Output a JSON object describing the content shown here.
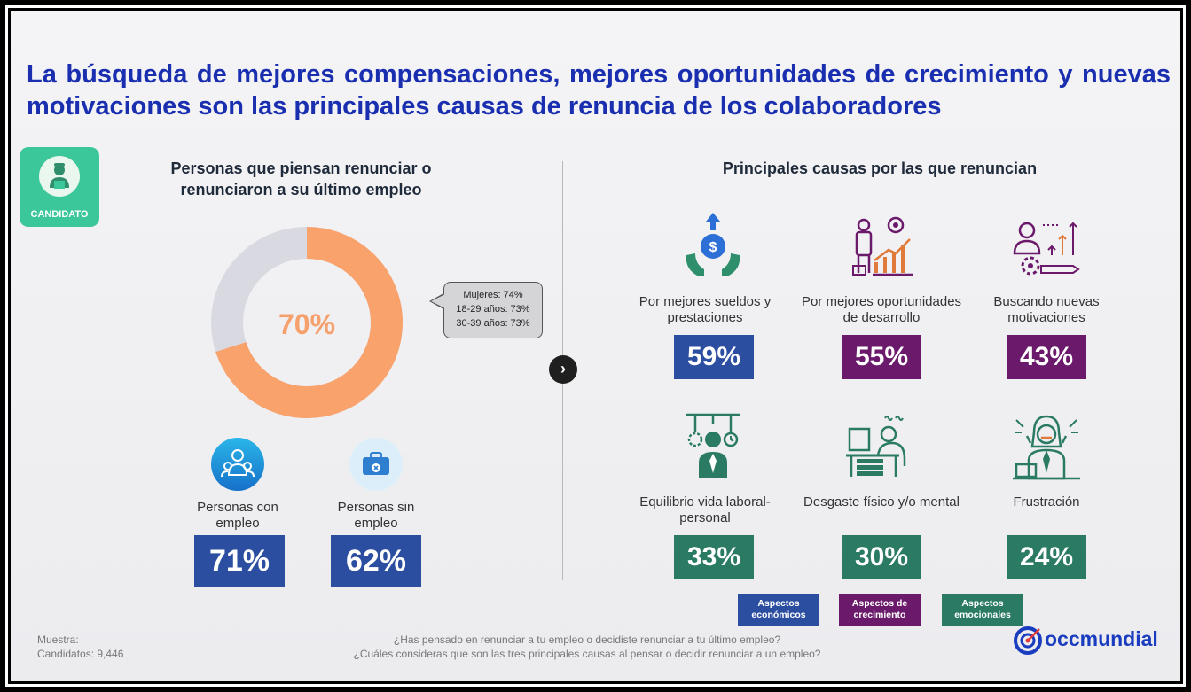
{
  "title": "La búsqueda de mejores compensaciones, mejores oportunidades de crecimiento y nuevas motivaciones son las principales causas de renuncia de los colaboradores",
  "badge": {
    "label": "CANDIDATO",
    "icon": "candidate-icon"
  },
  "left": {
    "title": "Personas que piensan renunciar o renunciaron a su último empleo",
    "donut": {
      "value": 70,
      "label": "70%",
      "fill_color": "#f9a26c",
      "rest_color": "#d9d9e2"
    },
    "callout": [
      "Mujeres: 74%",
      "18-29 años: 73%",
      "30-39 años: 73%"
    ],
    "stats": [
      {
        "label": "Personas con empleo",
        "value": "71%",
        "icon": "employed-people-icon"
      },
      {
        "label": "Personas sin empleo",
        "value": "62%",
        "icon": "briefcase-x-icon"
      }
    ]
  },
  "right": {
    "title": "Principales causas por las que renuncian",
    "causes": [
      {
        "label": "Por mejores sueldos y prestaciones",
        "value": "59%",
        "category": "economicos",
        "icon": "money-hands-icon"
      },
      {
        "label": "Por mejores oportunidades de desarrollo",
        "value": "55%",
        "category": "crecimiento",
        "icon": "growth-presentation-icon"
      },
      {
        "label": "Buscando nuevas motivaciones",
        "value": "43%",
        "category": "crecimiento",
        "icon": "motivation-arrows-icon"
      },
      {
        "label": "Equilibrio vida laboral-personal",
        "value": "33%",
        "category": "emocionales",
        "icon": "balance-person-icon"
      },
      {
        "label": "Desgaste físico y/o mental",
        "value": "30%",
        "category": "emocionales",
        "icon": "tired-worker-icon"
      },
      {
        "label": "Frustración",
        "value": "24%",
        "category": "emocionales",
        "icon": "frustrated-person-icon"
      }
    ]
  },
  "legend": [
    {
      "label": "Aspectos económicos",
      "color": "#2b4ea0"
    },
    {
      "label": "Aspectos de crecimiento",
      "color": "#6b1a6b"
    },
    {
      "label": "Aspectos emocionales",
      "color": "#2a7a64"
    }
  ],
  "footer": {
    "muestra_label": "Muestra:",
    "muestra_value": "Candidatos: 9,446",
    "question1": "¿Has pensado en renunciar a tu empleo o decidiste renunciar a tu último empleo?",
    "question2": "¿Cuáles consideras que son las tres principales causas al pensar o decidir renunciar a un empleo?"
  },
  "logo": {
    "text": "occmundial"
  },
  "colors": {
    "title": "#1a2fb0",
    "economicos": "#2b4ea0",
    "crecimiento": "#6b1a6b",
    "emocionales": "#2a7a64",
    "donut_accent": "#f9a26c",
    "badge": "#3cc79a"
  }
}
